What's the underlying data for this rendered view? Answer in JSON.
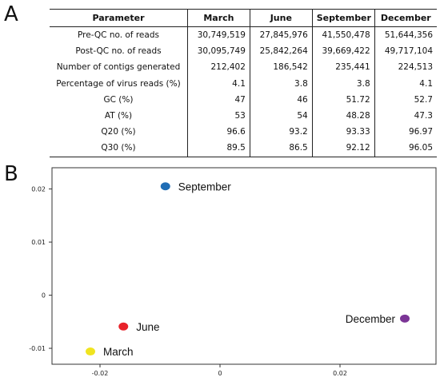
{
  "panels": {
    "a_label": "A",
    "b_label": "B"
  },
  "table": {
    "headers": [
      "Parameter",
      "March",
      "June",
      "September",
      "December"
    ],
    "rows": [
      [
        "Pre-QC no. of reads",
        "30,749,519",
        "27,845,976",
        "41,550,478",
        "51,644,356"
      ],
      [
        "Post-QC no. of reads",
        "30,095,749",
        "25,842,264",
        "39,669,422",
        "49,717,104"
      ],
      [
        "Number of contigs generated",
        "212,402",
        "186,542",
        "235,441",
        "224,513"
      ],
      [
        "Percentage of virus reads (%)",
        "4.1",
        "3.8",
        "3.8",
        "4.1"
      ],
      [
        "GC (%)",
        "47",
        "46",
        "51.72",
        "52.7"
      ],
      [
        "AT (%)",
        "53",
        "54",
        "48.28",
        "47.3"
      ],
      [
        "Q20 (%)",
        "96.6",
        "93.2",
        "93.33",
        "96.97"
      ],
      [
        "Q30 (%)",
        "89.5",
        "86.5",
        "92.12",
        "96.05"
      ]
    ]
  },
  "chart_data": {
    "type": "scatter",
    "title": "",
    "xlabel": "",
    "ylabel": "",
    "xlim": [
      -0.028,
      0.036
    ],
    "ylim": [
      -0.013,
      0.024
    ],
    "x_ticks": [
      -0.02,
      0,
      0.02
    ],
    "x_tick_labels": [
      "-0.02",
      "0",
      "0.02"
    ],
    "y_ticks": [
      -0.01,
      0,
      0.01,
      0.02
    ],
    "y_tick_labels": [
      "-0.01",
      "0",
      "0.01",
      "0.02"
    ],
    "grid": false,
    "points": [
      {
        "label": "September",
        "x": -0.0091,
        "y": 0.0205,
        "color": "#1f6db5"
      },
      {
        "label": "June",
        "x": -0.0161,
        "y": -0.0059,
        "color": "#e8222a"
      },
      {
        "label": "March",
        "x": -0.0216,
        "y": -0.0106,
        "color": "#f0e420"
      },
      {
        "label": "December",
        "x": 0.0308,
        "y": -0.0044,
        "color": "#7b3596"
      }
    ]
  }
}
